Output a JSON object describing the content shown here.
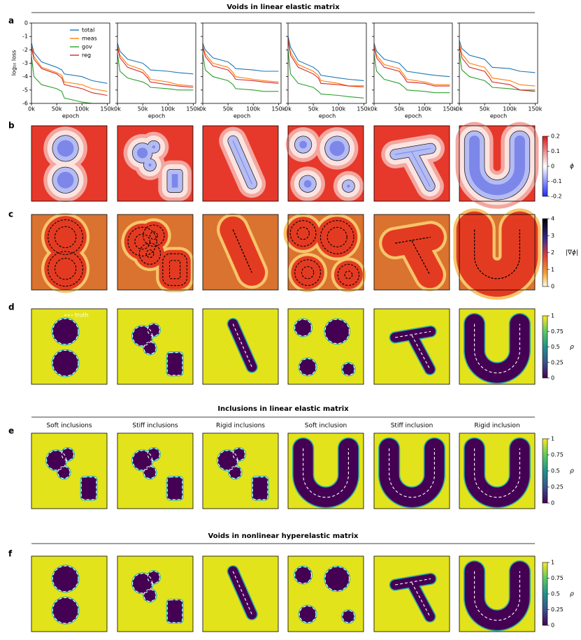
{
  "titles": [
    "Voids in linear elastic matrix",
    "Inclusions in linear elastic matrix",
    "Voids in nonlinear hyperelastic matrix"
  ],
  "letters": [
    "a",
    "b",
    "c",
    "d",
    "e",
    "f"
  ],
  "loss": {
    "type": "line",
    "ylabel": "log₁₀ loss",
    "xlabel": "epoch",
    "xlim": [
      0,
      155000
    ],
    "ylim": [
      -6,
      0
    ],
    "yticks": [
      0,
      -1,
      -2,
      -3,
      -4,
      -5,
      -6
    ],
    "xticks": [
      {
        "value": 0,
        "label": "0k"
      },
      {
        "value": 50000,
        "label": "50k"
      },
      {
        "value": 100000,
        "label": "100k"
      },
      {
        "value": 150000,
        "label": "150k"
      }
    ],
    "legend": "upper center",
    "series": [
      {
        "name": "total",
        "color": "#1f77b4"
      },
      {
        "name": "meas",
        "color": "#ff7f0e"
      },
      {
        "name": "gov",
        "color": "#2ca02c"
      },
      {
        "name": "reg",
        "color": "#d62728"
      }
    ],
    "x": [
      0,
      5000,
      20000,
      50000,
      60000,
      65000,
      100000,
      120000,
      150000
    ],
    "plots": [
      [
        [
          -1.5,
          -2.2,
          -2.9,
          -3.3,
          -3.5,
          -3.8,
          -4.0,
          -4.3,
          -4.5
        ],
        [
          -1.7,
          -2.5,
          -3.3,
          -3.7,
          -3.9,
          -4.4,
          -4.6,
          -4.9,
          -5.1
        ],
        [
          -2.5,
          -4.0,
          -4.6,
          -4.9,
          -5.1,
          -5.6,
          -5.9,
          -6.0,
          -6.0
        ],
        [
          -1.8,
          -2.7,
          -3.4,
          -3.8,
          -4.1,
          -4.6,
          -4.9,
          -5.2,
          -5.4
        ]
      ],
      [
        [
          -1.5,
          -2.1,
          -2.7,
          -3.0,
          -3.3,
          -3.5,
          -3.6,
          -3.7,
          -3.8
        ],
        [
          -1.7,
          -2.4,
          -3.1,
          -3.5,
          -3.9,
          -4.2,
          -4.4,
          -4.6,
          -4.7
        ],
        [
          -2.3,
          -3.6,
          -4.1,
          -4.4,
          -4.6,
          -4.8,
          -4.9,
          -5.0,
          -5.0
        ],
        [
          -1.8,
          -2.6,
          -3.3,
          -3.7,
          -4.1,
          -4.4,
          -4.6,
          -4.7,
          -4.8
        ]
      ],
      [
        [
          -1.5,
          -2.0,
          -2.6,
          -2.9,
          -3.2,
          -3.4,
          -3.5,
          -3.6,
          -3.6
        ],
        [
          -1.7,
          -2.3,
          -3.0,
          -3.3,
          -3.7,
          -4.0,
          -4.2,
          -4.3,
          -4.4
        ],
        [
          -2.3,
          -3.5,
          -4.0,
          -4.3,
          -4.6,
          -4.9,
          -5.0,
          -5.1,
          -5.1
        ],
        [
          -1.8,
          -2.5,
          -3.2,
          -3.5,
          -3.9,
          -4.2,
          -4.3,
          -4.4,
          -4.5
        ]
      ],
      [
        [
          -1.0,
          -1.8,
          -2.8,
          -3.3,
          -3.6,
          -3.9,
          -4.1,
          -4.2,
          -4.3
        ],
        [
          -1.2,
          -2.2,
          -3.1,
          -3.6,
          -3.9,
          -4.3,
          -4.5,
          -4.7,
          -4.8
        ],
        [
          -2.0,
          -3.8,
          -4.5,
          -4.8,
          -5.1,
          -5.3,
          -5.4,
          -5.5,
          -5.6
        ],
        [
          -1.3,
          -2.4,
          -3.3,
          -3.8,
          -4.1,
          -4.5,
          -4.6,
          -4.7,
          -4.7
        ]
      ],
      [
        [
          -1.5,
          -2.1,
          -2.7,
          -3.0,
          -3.4,
          -3.6,
          -3.8,
          -3.9,
          -4.0
        ],
        [
          -1.7,
          -2.4,
          -3.1,
          -3.4,
          -3.9,
          -4.2,
          -4.4,
          -4.6,
          -4.6
        ],
        [
          -2.3,
          -3.6,
          -4.2,
          -4.5,
          -4.8,
          -5.0,
          -5.1,
          -5.2,
          -5.2
        ],
        [
          -1.8,
          -2.6,
          -3.3,
          -3.6,
          -4.1,
          -4.4,
          -4.5,
          -4.7,
          -4.7
        ]
      ],
      [
        [
          -1.3,
          -1.9,
          -2.4,
          -2.7,
          -3.1,
          -3.3,
          -3.4,
          -3.6,
          -3.7
        ],
        [
          -1.5,
          -2.3,
          -3.0,
          -3.3,
          -3.8,
          -4.1,
          -4.3,
          -4.6,
          -4.7
        ],
        [
          -2.2,
          -3.5,
          -4.0,
          -4.3,
          -4.6,
          -4.8,
          -4.9,
          -5.0,
          -5.0
        ],
        [
          -1.7,
          -2.6,
          -3.3,
          -3.6,
          -4.1,
          -4.4,
          -4.6,
          -5.0,
          -5.1
        ]
      ]
    ]
  },
  "truth_legend": "truth",
  "column_titles": [
    "Soft inclusions",
    "Stiff inclusions",
    "Rigid inclusions",
    "Soft inclusion",
    "Stiff inclusion",
    "Rigid inclusion"
  ],
  "colorbars": [
    {
      "label": "ϕ",
      "lim": [
        -0.2,
        0.2
      ],
      "ticks": [
        0.2,
        0.1,
        0,
        -0.1,
        -0.2
      ]
    },
    {
      "label": "|∇ϕ|",
      "lim": [
        0,
        4
      ],
      "ticks": [
        4,
        3,
        2,
        1,
        0
      ]
    },
    {
      "label": "ρ",
      "lim": [
        0,
        1
      ],
      "ticks": [
        1,
        0.75,
        0.5,
        0.25,
        0
      ]
    },
    {
      "label": "ρ",
      "lim": [
        0,
        1
      ],
      "ticks": [
        1,
        0.75,
        0.5,
        0.25,
        0
      ]
    },
    {
      "label": "ρ",
      "lim": [
        0,
        1
      ],
      "ticks": [
        1,
        0.75,
        0.5,
        0.25,
        0
      ]
    }
  ]
}
